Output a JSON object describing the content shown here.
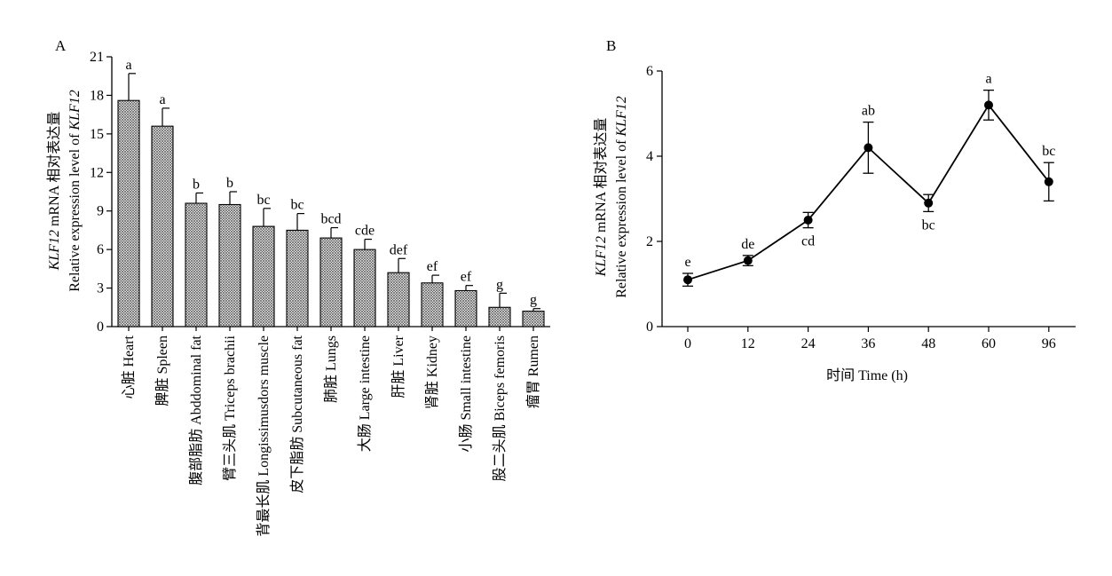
{
  "chart_data": [
    {
      "panel": "A",
      "type": "bar",
      "ylabel_line1_italic": "KLF12",
      "ylabel_line1_rest": " mRNA 相对表达量",
      "ylabel_line2_plain": "Relative expression level of ",
      "ylabel_line2_italic": "KLF12",
      "ylim": [
        0,
        21
      ],
      "yticks": [
        0,
        3,
        6,
        9,
        12,
        15,
        18,
        21
      ],
      "categories": [
        "心脏 Heart",
        "脾脏 Spleen",
        "腹部脂肪 Abddominal fat",
        "臂三头肌 Triceps brachii",
        "背最长肌 Longissimusdors muscle",
        "皮下脂肪 Subcutaneous fat",
        "肺脏 Lungs",
        "大肠 Large intestine",
        "肝脏 Liver",
        "肾脏 Kidney",
        "小肠 Small intestine",
        "股二头肌 Biceps femoris",
        "瘤胃 Rumen"
      ],
      "values": [
        17.6,
        15.6,
        9.6,
        9.5,
        7.8,
        7.5,
        6.9,
        6.0,
        4.2,
        3.4,
        2.8,
        1.5,
        1.2
      ],
      "errors": [
        2.1,
        1.4,
        0.8,
        1.0,
        1.4,
        1.3,
        0.8,
        0.8,
        1.1,
        0.6,
        0.4,
        1.1,
        0.2
      ],
      "significance": [
        "a",
        "a",
        "b",
        "b",
        "bc",
        "bc",
        "bcd",
        "cde",
        "def",
        "ef",
        "ef",
        "g",
        "g"
      ],
      "grid": false,
      "legend": "none"
    },
    {
      "panel": "B",
      "type": "line",
      "xlabel": "时间 Time (h)",
      "ylabel_line1_italic": "KLF12",
      "ylabel_line1_rest": " mRNA 相对表达量",
      "ylabel_line2_plain": "Relative expression level of ",
      "ylabel_line2_italic": "KLF12",
      "x": [
        "0",
        "12",
        "24",
        "36",
        "48",
        "60",
        "96"
      ],
      "values": [
        1.1,
        1.55,
        2.5,
        4.2,
        2.9,
        5.2,
        3.4
      ],
      "errors": [
        0.15,
        0.12,
        0.18,
        0.6,
        0.2,
        0.35,
        0.45
      ],
      "significance": [
        "e",
        "de",
        "cd",
        "ab",
        "bc",
        "a",
        "bc"
      ],
      "significance_pos": [
        "above",
        "above",
        "below",
        "above",
        "below",
        "above",
        "above"
      ],
      "ylim": [
        0,
        6
      ],
      "yticks": [
        0,
        2,
        4,
        6
      ],
      "grid": false,
      "legend": "none"
    }
  ]
}
